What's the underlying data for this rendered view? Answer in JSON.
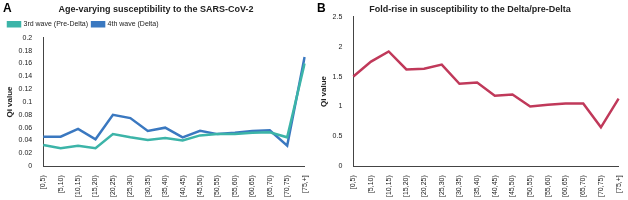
{
  "chart_data": [
    {
      "type": "line",
      "panel": "A",
      "title": "Age-varying susceptibility to the SARS-CoV-2",
      "y_label": "Qi value",
      "categories": [
        "[0,5)",
        "[5,10)",
        "[10,15)",
        "[15,20)",
        "[20,25)",
        "[25,30)",
        "[30,35)",
        "[35,40)",
        "[40,45)",
        "[45,50)",
        "[50,55)",
        "[55,60)",
        "[60,65)",
        "[65,70)",
        "[70,75)",
        "[75,+]"
      ],
      "series": [
        {
          "name": "3rd wave (Pre-Delta)",
          "color": "#3cb4a8",
          "values": [
            0.033,
            0.028,
            0.032,
            0.028,
            0.05,
            0.045,
            0.041,
            0.044,
            0.04,
            0.048,
            0.05,
            0.05,
            0.052,
            0.053,
            0.045,
            0.16
          ]
        },
        {
          "name": "4th wave (Delta)",
          "color": "#3a78c0",
          "values": [
            0.046,
            0.046,
            0.058,
            0.042,
            0.08,
            0.075,
            0.055,
            0.06,
            0.045,
            0.055,
            0.05,
            0.052,
            0.055,
            0.056,
            0.032,
            0.17
          ]
        }
      ],
      "ylim": [
        0,
        0.2
      ],
      "yticks": [
        0,
        0.02,
        0.04,
        0.06,
        0.08,
        0.1,
        0.12,
        0.14,
        0.16,
        0.18,
        0.2
      ],
      "grid": false,
      "legend": "upper left"
    },
    {
      "type": "line",
      "panel": "B",
      "title": "Fold-rise in susceptibility to the Delta/pre-Delta",
      "y_label": "Qi value",
      "categories": [
        "[0,5)",
        "[5,10)",
        "[10,15)",
        "[15,20)",
        "[20,25)",
        "[25,30)",
        "[30,35)",
        "[35,40)",
        "[40,45)",
        "[45,50)",
        "[50,55)",
        "[55,60)",
        "[60,65)",
        "[65,70)",
        "[70,75)",
        "[75,+]"
      ],
      "values": [
        1.5,
        1.75,
        1.92,
        1.62,
        1.63,
        1.7,
        1.38,
        1.4,
        1.18,
        1.2,
        1.0,
        1.03,
        1.05,
        1.05,
        0.65,
        1.13
      ],
      "color": "#c0395a",
      "ylim": [
        0,
        2.5
      ],
      "yticks": [
        0,
        0.5,
        1,
        1.5,
        2,
        2.5
      ],
      "grid": false
    }
  ]
}
